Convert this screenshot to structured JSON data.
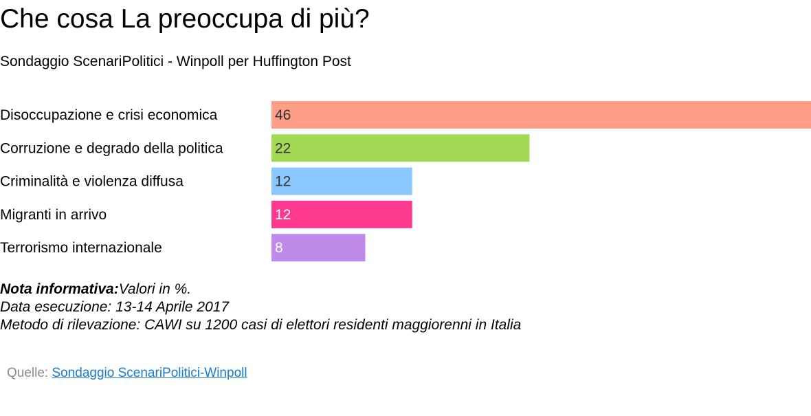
{
  "header": {
    "title": "Che cosa La preoccupa di più?",
    "subtitle": "Sondaggio ScenariPolitici - Winpoll per Huffington Post"
  },
  "chart_data": {
    "type": "bar",
    "orientation": "horizontal",
    "categories": [
      "Disoccupazione e crisi economica",
      "Corruzione e degrado della politica",
      "Criminalità e violenza diffusa",
      "Migranti in arrivo",
      "Terrorismo internazionale"
    ],
    "values": [
      46,
      22,
      12,
      12,
      8
    ],
    "colors": [
      "#fe9e86",
      "#a3d955",
      "#8ac7fd",
      "#fe3990",
      "#bf8aea"
    ],
    "label_colors": [
      "#333333",
      "#333333",
      "#333333",
      "#ffffff",
      "#ffffff"
    ],
    "xlim": [
      0,
      46
    ],
    "grid": false,
    "legend": "none"
  },
  "notes": {
    "label": "Nota informativa:",
    "text": "Valori in %.",
    "date": "Data esecuzione: 13-14 Aprile 2017",
    "method": "Metodo di rilevazione: CAWI su 1200 casi di elettori residenti maggiorenni in Italia"
  },
  "source": {
    "label": "Quelle:",
    "link_text": "Sondaggio ScenariPolitici-Winpoll"
  }
}
